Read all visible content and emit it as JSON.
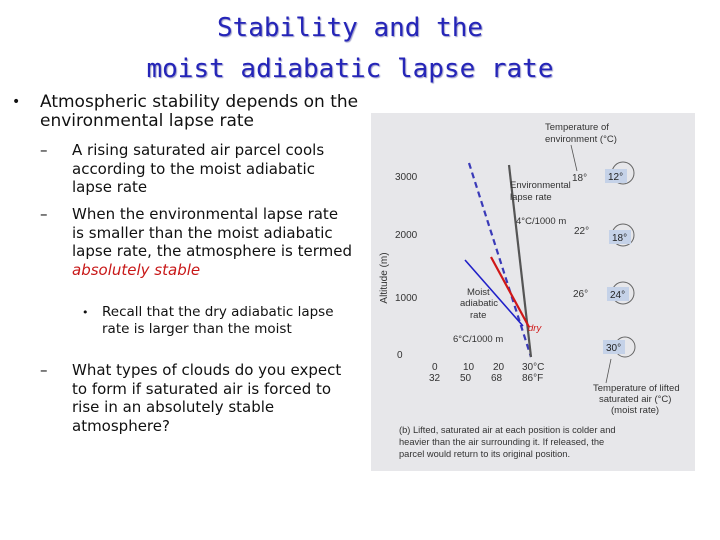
{
  "slide": {
    "title_line1": "Stability and the",
    "title_line2": "moist adiabatic lapse rate",
    "bullet1": "Atmospheric stability depends on the environmental lapse rate",
    "sub1": "A rising saturated air parcel cools according to the moist adiabatic lapse rate",
    "sub2_plain": "When the environmental lapse rate is smaller than the moist adiabatic lapse rate, the atmosphere is termed ",
    "sub2_emph": "absolutely stable",
    "subsub1": "Recall that the dry adiabatic lapse rate is larger than the moist",
    "sub3": "What types of clouds do you expect to form if saturated air is forced to rise in an absolutely stable atmosphere?",
    "bullet_glyph": "•",
    "dash_glyph": "–",
    "emph_color": "#c81818",
    "title_color": "#2525b8"
  },
  "figure": {
    "top_label_1": "Temperature of",
    "top_label_2": "environment (°C)",
    "y_axis_label": "Altitude (m)",
    "y_ticks": [
      "3000",
      "2000",
      "1000",
      "0"
    ],
    "env_temps": [
      "18°",
      "22°",
      "26°"
    ],
    "parcel_temps": [
      "12°",
      "18°",
      "24°",
      "30°"
    ],
    "env_rate_label_1": "Environmental",
    "env_rate_label_2": "lapse rate",
    "env_rate_value": "4°C/1000 m",
    "moist_label_1": "Moist",
    "moist_label_2": "adiabatic",
    "moist_label_3": "rate",
    "moist_rate_value": "6°C/1000 m",
    "dry_label": "dry",
    "x_ticks_c": [
      "0",
      "10",
      "20",
      "30°C"
    ],
    "x_ticks_f": [
      "32",
      "50",
      "68",
      "86°F"
    ],
    "bottom_label_1": "Temperature of lifted",
    "bottom_label_2": "saturated air (°C)",
    "bottom_label_3": "(moist rate)",
    "caption_1": "(b) Lifted, saturated air at each position is colder and",
    "caption_2": "heavier than the air surrounding it. If released, the",
    "caption_3": "parcel would return to its original position."
  }
}
